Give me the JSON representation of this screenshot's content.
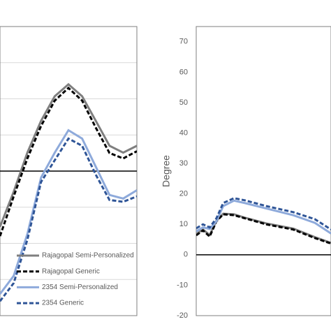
{
  "chart_data": [
    {
      "type": "line",
      "xlim": [
        0,
        100
      ],
      "ylim": [
        -40,
        40
      ],
      "yticks": [
        -30,
        -20,
        -10,
        10,
        20,
        30
      ],
      "show_tick_labels": false,
      "grid": true,
      "zero_line": true,
      "legend": "lower left",
      "x": [
        0,
        10,
        20,
        30,
        40,
        50,
        60,
        70,
        80,
        90,
        100
      ],
      "series": [
        {
          "name": "Rajagopal Semi-Personalized",
          "color": "#7f7f7f",
          "dash": false,
          "values": [
            -15.4,
            -5.7,
            5.1,
            13.9,
            20.7,
            24,
            20.7,
            13.9,
            7,
            5.1,
            7
          ]
        },
        {
          "name": "Rajagopal Generic",
          "color": "#000000",
          "dash": true,
          "values": [
            -18,
            -7,
            3.5,
            12.5,
            19.5,
            23,
            19.5,
            12,
            5,
            3.5,
            5.5
          ]
        },
        {
          "name": "2354 Semi-Personalized",
          "color": "#8eaadb",
          "dash": false,
          "values": [
            -34,
            -29,
            -17.4,
            -1.8,
            5.1,
            11.3,
            9,
            1.2,
            -6.6,
            -7.6,
            -5.3
          ]
        },
        {
          "name": "2354 Generic",
          "color": "#2f5597",
          "dash": true,
          "values": [
            -36,
            -31,
            -19,
            -3,
            3,
            9,
            7,
            -1,
            -8,
            -8.5,
            -7
          ]
        }
      ]
    },
    {
      "type": "line",
      "ylabel": "Degree",
      "xlim": [
        0,
        100
      ],
      "ylim": [
        -20,
        75
      ],
      "yticks": [
        -20,
        -10,
        0,
        10,
        20,
        30,
        40,
        50,
        60,
        70
      ],
      "show_tick_labels": true,
      "grid": false,
      "zero_line": true,
      "x": [
        0,
        5,
        10,
        15,
        20,
        28,
        36,
        52,
        72,
        88,
        100
      ],
      "series": [
        {
          "color": "#7f7f7f",
          "dash": false,
          "values": [
            6.8,
            8.3,
            6.5,
            11.2,
            13.5,
            13.3,
            12.2,
            10.3,
            8.6,
            5.8,
            3.9
          ]
        },
        {
          "color": "#000000",
          "dash": true,
          "values": [
            6.4,
            8,
            6,
            11,
            13.3,
            13,
            12,
            10,
            8.3,
            5.5,
            3.7
          ]
        },
        {
          "color": "#8eaadb",
          "dash": false,
          "values": [
            7.7,
            9,
            8.5,
            11,
            16,
            17.8,
            17,
            15.2,
            13,
            10.5,
            7
          ]
        },
        {
          "color": "#2f5597",
          "dash": true,
          "values": [
            8.7,
            10,
            9,
            12,
            17,
            18.6,
            17.9,
            16,
            14,
            11.7,
            8.3
          ]
        }
      ]
    }
  ]
}
